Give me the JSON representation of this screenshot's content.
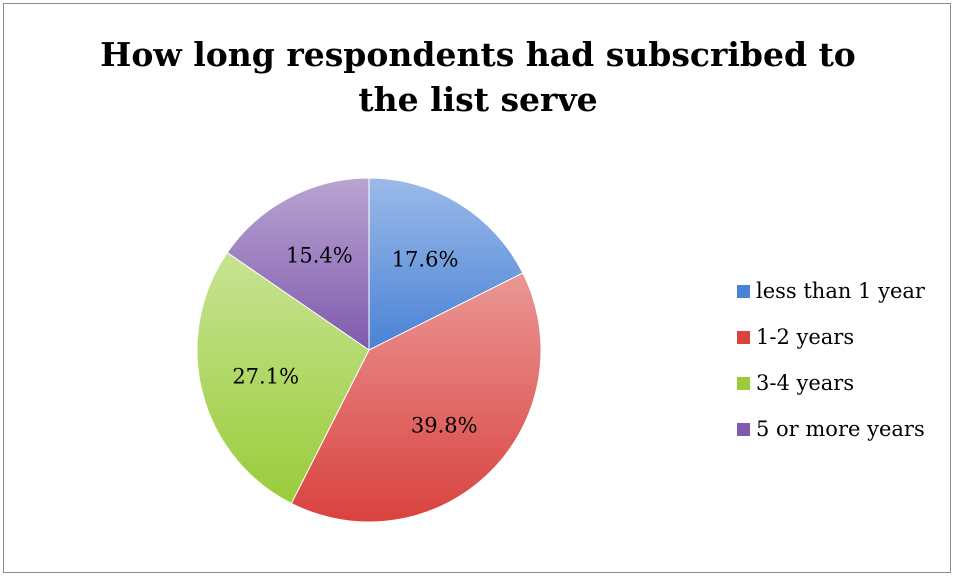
{
  "chart_data": {
    "type": "pie",
    "title": "How long respondents had subscribed to the list serve",
    "title_lines": [
      "How long respondents had subscribed to",
      "the list serve"
    ],
    "categories": [
      "less than 1 year",
      "1-2 years",
      "3-4 years",
      "5 or more years"
    ],
    "values": [
      17.6,
      39.8,
      27.1,
      15.4
    ],
    "data_labels": [
      "17.6%",
      "39.8%",
      "27.1%",
      "15.4%"
    ],
    "colors": [
      "#4a82d6",
      "#d9423f",
      "#9acc3a",
      "#7f5aad"
    ],
    "legend_position": "right"
  }
}
